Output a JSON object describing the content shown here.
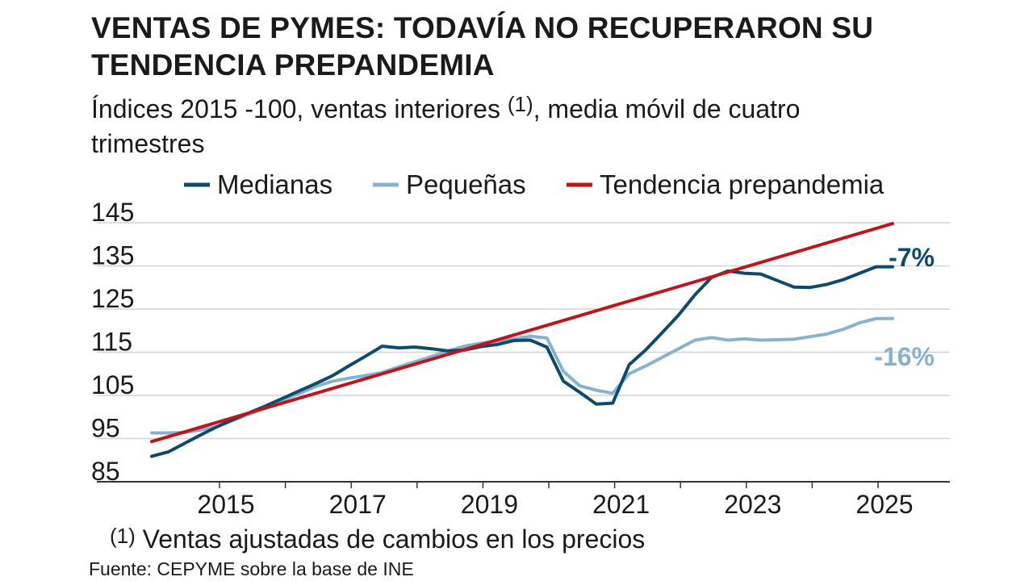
{
  "title": "VENTAS DE PYMES: TODAVÍA NO RECUPERARON SU TENDENCIA PREPANDEMIA",
  "subtitle_pre": "Índices 2015 -100, ventas interiores ",
  "subtitle_note": "(1)",
  "subtitle_post": ", media móvil de cuatro trimestres",
  "footnote_mark": "(1)",
  "footnote_text": " Ventas ajustadas de cambios en los precios",
  "source": "Fuente: CEPYME sobre la base de INE",
  "colors": {
    "medianas": "#0f4a6b",
    "pequenas": "#86b2cc",
    "tendencia": "#c0141b",
    "grid": "#d4d4d4",
    "axis": "#333333"
  },
  "chart_data": {
    "type": "line",
    "title": "VENTAS DE PYMES: TODAVÍA NO RECUPERARON SU TENDENCIA PREPANDEMIA",
    "xlabel": "",
    "ylabel": "",
    "ylim": [
      85,
      145
    ],
    "xlim": [
      2013.95,
      2025.95
    ],
    "yticks": [
      85,
      95,
      105,
      115,
      125,
      135,
      145
    ],
    "xticks": [
      2015,
      2017,
      2019,
      2021,
      2023,
      2025
    ],
    "legend": [
      "Medianas",
      "Pequeñas",
      "Tendencia prepandemia"
    ],
    "legend_position": "top",
    "series": [
      {
        "name": "Medianas",
        "color": "#0f4a6b",
        "end_label": "-7%",
        "x": [
          2013.75,
          2014.0,
          2014.25,
          2014.5,
          2014.75,
          2015.0,
          2015.25,
          2015.5,
          2015.75,
          2016.0,
          2016.25,
          2016.5,
          2016.75,
          2017.0,
          2017.25,
          2017.5,
          2017.75,
          2018.0,
          2018.25,
          2018.5,
          2018.75,
          2019.0,
          2019.25,
          2019.5,
          2019.75,
          2020.0,
          2020.25,
          2020.5,
          2020.75,
          2021.0,
          2021.25,
          2021.5,
          2021.75,
          2022.0,
          2022.25,
          2022.5,
          2022.75,
          2023.0,
          2023.25,
          2023.5,
          2023.75,
          2024.0,
          2024.25,
          2024.5,
          2024.75,
          2025.0
        ],
        "values": [
          88.1,
          89.1,
          91.1,
          93.1,
          95.0,
          96.7,
          98.3,
          99.9,
          101.6,
          103.3,
          105.0,
          106.8,
          109.1,
          111.3,
          113.6,
          113.2,
          113.4,
          113.0,
          112.5,
          112.7,
          113.5,
          114.0,
          114.9,
          115.0,
          113.4,
          105.5,
          102.9,
          100.2,
          100.4,
          109.3,
          112.7,
          116.7,
          120.8,
          125.5,
          129.5,
          131.0,
          130.5,
          130.3,
          128.8,
          127.3,
          127.2,
          127.9,
          129.0,
          130.5,
          132.0,
          132.0
        ]
      },
      {
        "name": "Pequeñas",
        "color": "#86b2cc",
        "end_label": "-16%",
        "x": [
          2013.75,
          2014.0,
          2014.25,
          2014.5,
          2014.75,
          2015.0,
          2015.25,
          2015.5,
          2015.75,
          2016.0,
          2016.25,
          2016.5,
          2016.75,
          2017.0,
          2017.25,
          2017.5,
          2017.75,
          2018.0,
          2018.25,
          2018.5,
          2018.75,
          2019.0,
          2019.25,
          2019.5,
          2019.75,
          2020.0,
          2020.25,
          2020.5,
          2020.75,
          2021.0,
          2021.25,
          2021.5,
          2021.75,
          2022.0,
          2022.25,
          2022.5,
          2022.75,
          2023.0,
          2023.25,
          2023.5,
          2023.75,
          2024.0,
          2024.25,
          2024.5,
          2024.75,
          2025.0
        ],
        "values": [
          93.5,
          93.5,
          93.6,
          94.2,
          95.0,
          96.5,
          98.0,
          99.6,
          101.2,
          102.7,
          104.3,
          105.5,
          106.2,
          106.8,
          107.5,
          108.8,
          110.0,
          111.2,
          112.5,
          113.6,
          114.3,
          114.8,
          115.3,
          115.9,
          115.5,
          107.8,
          104.4,
          103.4,
          102.7,
          107.2,
          109.0,
          111.0,
          113.0,
          115.0,
          115.6,
          115.0,
          115.3,
          115.0,
          115.1,
          115.2,
          115.8,
          116.4,
          117.5,
          119.0,
          120.0,
          120.0
        ]
      },
      {
        "name": "Tendencia prepandemia",
        "color": "#c0141b",
        "x": [
          2013.75,
          2025.0
        ],
        "values": [
          91.5,
          142.0
        ]
      }
    ]
  }
}
